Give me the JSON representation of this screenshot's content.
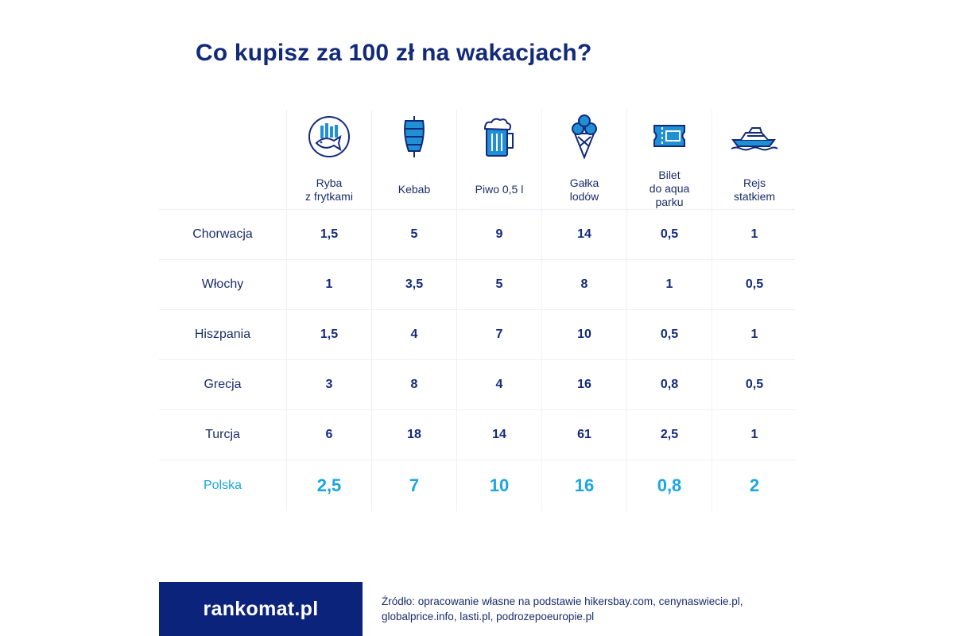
{
  "title": "Co kupisz za 100 zł na wakacjach?",
  "colors": {
    "navy": "#132a7a",
    "accent": "#1aa6e2",
    "icon_blue": "#1f8fd6",
    "footer_bg": "#0b237a"
  },
  "chart_data": {
    "type": "table",
    "title": "Co kupisz za 100 zł na wakacjach?",
    "columns": [
      {
        "label": "Ryba\nz frytkami",
        "icon": "fish-and-chips-icon"
      },
      {
        "label": "Kebab",
        "icon": "kebab-icon"
      },
      {
        "label": "Piwo 0,5 l",
        "icon": "beer-mug-icon"
      },
      {
        "label": "Gałka\nlodów",
        "icon": "ice-cream-icon"
      },
      {
        "label": "Bilet\ndo aqua\nparku",
        "icon": "ticket-icon"
      },
      {
        "label": "Rejs\nstatkiem",
        "icon": "boat-icon"
      }
    ],
    "rows": [
      {
        "country": "Chorwacja",
        "values": [
          "1,5",
          "5",
          "9",
          "14",
          "0,5",
          "1"
        ]
      },
      {
        "country": "Włochy",
        "values": [
          "1",
          "3,5",
          "5",
          "8",
          "1",
          "0,5"
        ]
      },
      {
        "country": "Hiszpania",
        "values": [
          "1,5",
          "4",
          "7",
          "10",
          "0,5",
          "1"
        ]
      },
      {
        "country": "Grecja",
        "values": [
          "3",
          "8",
          "4",
          "16",
          "0,8",
          "0,5"
        ]
      },
      {
        "country": "Turcja",
        "values": [
          "6",
          "18",
          "14",
          "61",
          "2,5",
          "1"
        ]
      },
      {
        "country": "Polska",
        "values": [
          "2,5",
          "7",
          "10",
          "16",
          "0,8",
          "2"
        ],
        "highlight": true
      }
    ]
  },
  "footer": {
    "logo": "rankomat.pl",
    "source": "Źródło: opracowanie własne na podstawie hikersbay.com, cenynaswiecie.pl, globalprice.info, lasti.pl, podrozepoeuropie.pl"
  }
}
